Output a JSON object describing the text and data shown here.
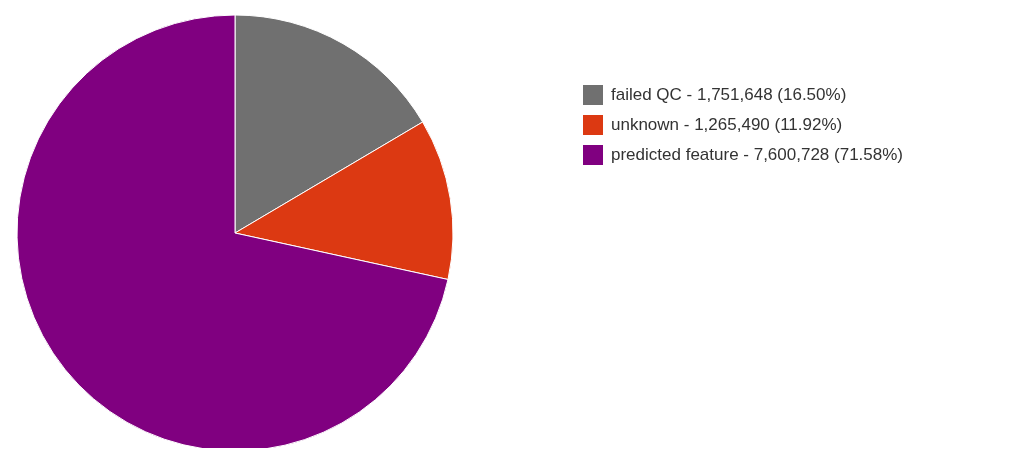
{
  "chart_data": {
    "type": "pie",
    "categories": [
      "failed QC - 1,751,648 (16.50%)",
      "unknown - 1,265,490 (11.92%)",
      "predicted feature - 7,600,728 (71.58%)"
    ],
    "values": [
      16.5,
      11.92,
      71.58
    ],
    "colors": [
      "#707070",
      "#dc3912",
      "#800080"
    ],
    "legend": "right"
  }
}
